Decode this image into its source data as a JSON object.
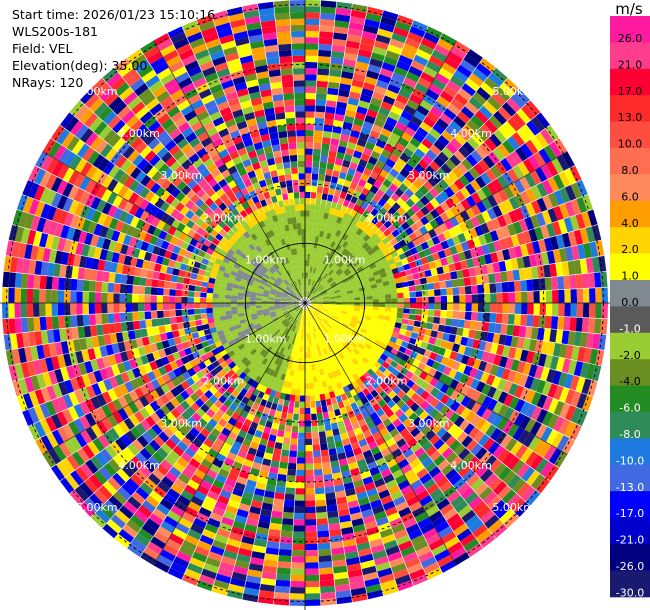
{
  "header": {
    "start_time": "Start time: 2026/01/23 15:10:16",
    "instrument": "WLS200s-181",
    "field": "Field: VEL",
    "elevation": "Elevation(deg): 35.00",
    "nrays": "NRays: 120"
  },
  "colorbar": {
    "unit": "m/s",
    "ticks": [
      "26.0",
      "21.0",
      "17.0",
      "13.0",
      "10.0",
      "8.0",
      "6.0",
      "4.0",
      "2.0",
      "1.0",
      "0.0",
      "-1.0",
      "-2.0",
      "-4.0",
      "-6.0",
      "-8.0",
      "-10.0",
      "-13.0",
      "-17.0",
      "-21.0",
      "-26.0",
      "-30.0"
    ],
    "colors": [
      "#ff1aa0",
      "#ff3d8c",
      "#ff0033",
      "#ff2a2a",
      "#ff4d40",
      "#ff6e50",
      "#ff8a5c",
      "#ff9e00",
      "#ffd400",
      "#ffff00",
      "#808890",
      "#5a5a5a",
      "#9acd32",
      "#6b8e23",
      "#228b22",
      "#2e8b57",
      "#1e7ae0",
      "#4169e1",
      "#0000ff",
      "#0000cd",
      "#000080",
      "#191970"
    ]
  },
  "chart_data": {
    "type": "heatmap",
    "subtype": "radar PPI (lidar velocity)",
    "title": "",
    "field": "VEL",
    "units": "m/s",
    "elevation_deg": 35.0,
    "nrays": 120,
    "range_ring_labels": [
      "1.00km",
      "2.00km",
      "3.00km",
      "4.00km",
      "5.00km",
      "1.00km",
      "2.00km",
      "3.00km",
      "4.00km",
      "5.00km",
      "1.00km",
      "2.00km",
      "3.00km",
      "4.00km",
      "5.00km",
      "1.00km",
      "2.00km",
      "3.00km",
      "4.00km",
      "5.00km"
    ],
    "range_rings_km": [
      1,
      2,
      3,
      4,
      5
    ],
    "colorbar_range": [
      -30,
      26
    ],
    "description_note": ""
  }
}
